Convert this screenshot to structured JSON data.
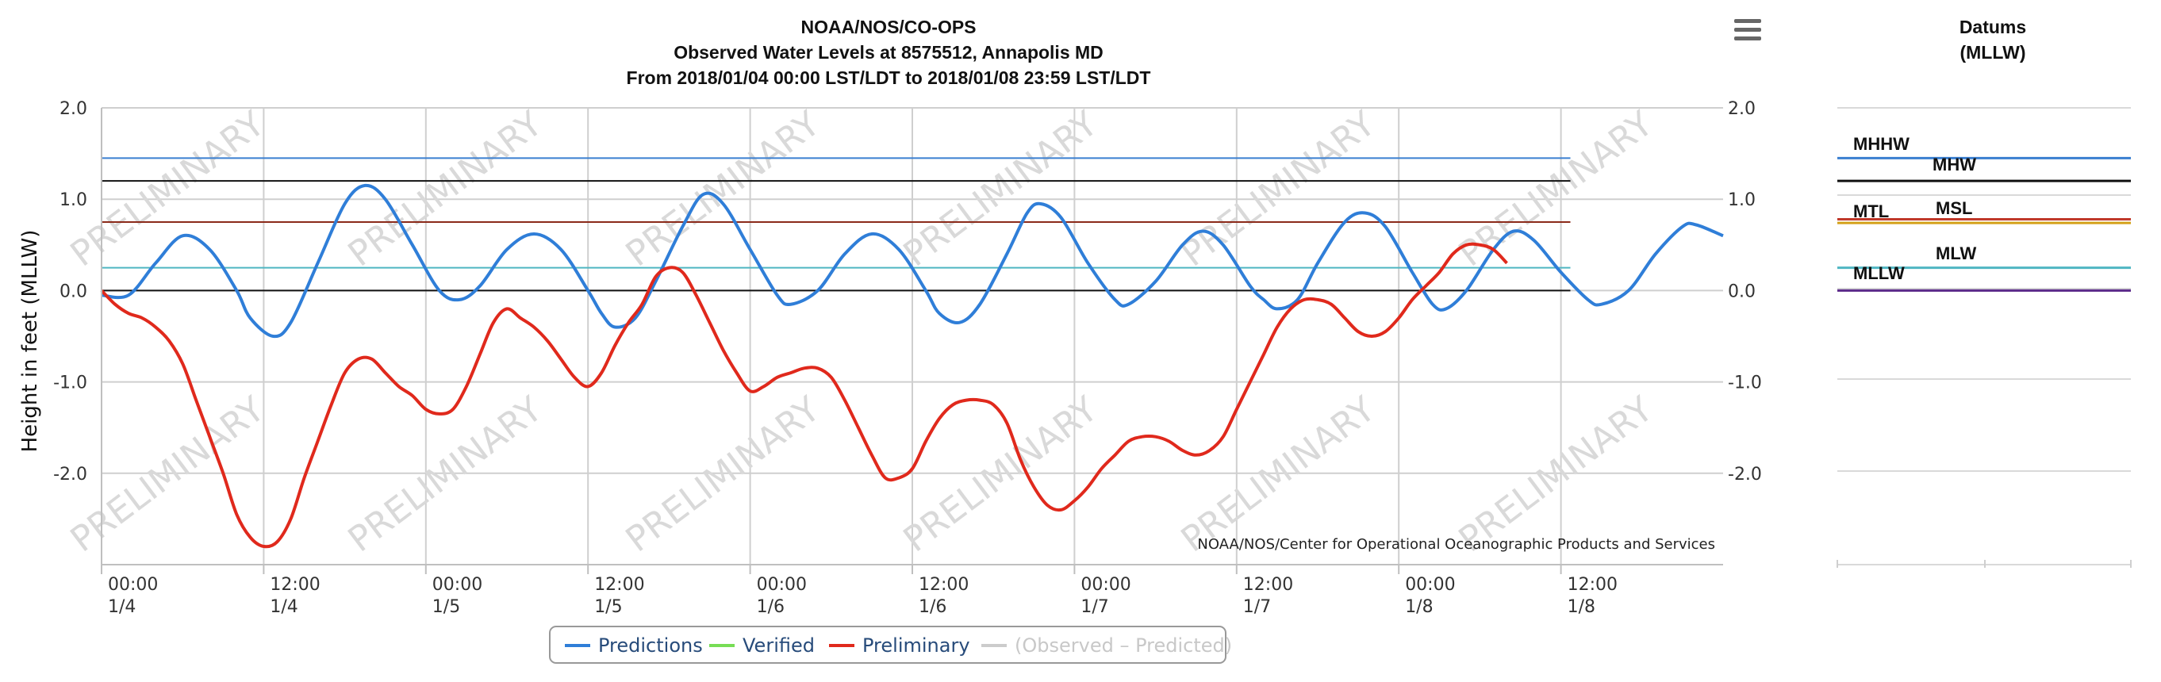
{
  "chart_data": {
    "type": "line",
    "title": "NOAA/NOS/CO-OPS",
    "subtitle_1": "Observed Water Levels at 8575512, Annapolis MD",
    "subtitle_2": "From 2018/01/04 00:00 LST/LDT to 2018/01/08 23:59 LST/LDT",
    "ylabel": "Height in feet (MLLW)",
    "credit": "NOAA/NOS/Center for Operational Oceanographic Products and Services",
    "watermark": "PRELIMINARY",
    "x_unit": "hours from 2018/01/04 00:00",
    "xlim": [
      0,
      120
    ],
    "ylim": [
      -3,
      2
    ],
    "y_ticks": [
      {
        "value": 2,
        "label": "2.0"
      },
      {
        "value": 1,
        "label": "1.0"
      },
      {
        "value": 0,
        "label": "0.0"
      },
      {
        "value": -1,
        "label": "-1.0"
      },
      {
        "value": -2,
        "label": "-2.0"
      }
    ],
    "x_ticks": [
      {
        "hour": 0,
        "time": "00:00",
        "date": "1/4"
      },
      {
        "hour": 12,
        "time": "12:00",
        "date": "1/4"
      },
      {
        "hour": 24,
        "time": "00:00",
        "date": "1/5"
      },
      {
        "hour": 36,
        "time": "12:00",
        "date": "1/5"
      },
      {
        "hour": 48,
        "time": "00:00",
        "date": "1/6"
      },
      {
        "hour": 60,
        "time": "12:00",
        "date": "1/6"
      },
      {
        "hour": 72,
        "time": "00:00",
        "date": "1/7"
      },
      {
        "hour": 84,
        "time": "12:00",
        "date": "1/7"
      },
      {
        "hour": 96,
        "time": "00:00",
        "date": "1/8"
      },
      {
        "hour": 108,
        "time": "12:00",
        "date": "1/8"
      }
    ],
    "datum_lines_main": [
      {
        "value": 1.45,
        "color": "#3a7fd0"
      },
      {
        "value": 1.2,
        "color": "#111111"
      },
      {
        "value": 0.75,
        "color": "#8b2a1a"
      },
      {
        "value": 0.25,
        "color": "#4fb6c2"
      },
      {
        "value": 0.0,
        "color": "#111111"
      }
    ],
    "series": [
      {
        "name": "Predictions",
        "color": "#2f7ed8",
        "points": [
          [
            0,
            -0.05
          ],
          [
            2,
            -0.05
          ],
          [
            4,
            0.3
          ],
          [
            6,
            0.6
          ],
          [
            8,
            0.45
          ],
          [
            10,
            0.0
          ],
          [
            11,
            -0.3
          ],
          [
            12.7,
            -0.5
          ],
          [
            14,
            -0.35
          ],
          [
            16,
            0.3
          ],
          [
            18,
            0.95
          ],
          [
            19.5,
            1.15
          ],
          [
            21,
            1.0
          ],
          [
            23,
            0.5
          ],
          [
            25,
            0.0
          ],
          [
            26.5,
            -0.1
          ],
          [
            28,
            0.05
          ],
          [
            30,
            0.45
          ],
          [
            32,
            0.62
          ],
          [
            34,
            0.45
          ],
          [
            36,
            0.0
          ],
          [
            37,
            -0.25
          ],
          [
            38,
            -0.4
          ],
          [
            39.5,
            -0.3
          ],
          [
            41,
            0.1
          ],
          [
            43,
            0.7
          ],
          [
            44.5,
            1.05
          ],
          [
            46,
            0.95
          ],
          [
            48,
            0.45
          ],
          [
            50,
            -0.05
          ],
          [
            51,
            -0.15
          ],
          [
            53,
            0.0
          ],
          [
            55,
            0.4
          ],
          [
            57,
            0.62
          ],
          [
            59,
            0.45
          ],
          [
            61,
            0.0
          ],
          [
            62,
            -0.25
          ],
          [
            63.5,
            -0.35
          ],
          [
            65,
            -0.15
          ],
          [
            67,
            0.4
          ],
          [
            68.5,
            0.85
          ],
          [
            69.5,
            0.95
          ],
          [
            71,
            0.8
          ],
          [
            73,
            0.3
          ],
          [
            75,
            -0.1
          ],
          [
            76,
            -0.15
          ],
          [
            78,
            0.1
          ],
          [
            80,
            0.5
          ],
          [
            81.5,
            0.65
          ],
          [
            83,
            0.5
          ],
          [
            85,
            0.05
          ],
          [
            86,
            -0.1
          ],
          [
            87,
            -0.2
          ],
          [
            88.5,
            -0.1
          ],
          [
            90,
            0.3
          ],
          [
            92,
            0.75
          ],
          [
            93.5,
            0.85
          ],
          [
            95,
            0.7
          ],
          [
            97,
            0.2
          ],
          [
            98.5,
            -0.15
          ],
          [
            99.5,
            -0.2
          ],
          [
            101,
            0.0
          ],
          [
            103,
            0.45
          ],
          [
            104.5,
            0.65
          ],
          [
            106,
            0.55
          ],
          [
            108,
            0.2
          ],
          [
            110,
            -0.1
          ],
          [
            111,
            -0.15
          ],
          [
            113,
            0.0
          ],
          [
            115,
            0.4
          ],
          [
            117,
            0.7
          ],
          [
            118,
            0.72
          ],
          [
            120,
            0.6
          ]
        ]
      },
      {
        "name": "Verified",
        "color": "#77dd55",
        "points": []
      },
      {
        "name": "Preliminary",
        "color": "#e0291c",
        "points": [
          [
            0,
            0.0
          ],
          [
            1,
            -0.15
          ],
          [
            2,
            -0.25
          ],
          [
            3,
            -0.3
          ],
          [
            4,
            -0.4
          ],
          [
            5,
            -0.55
          ],
          [
            6,
            -0.8
          ],
          [
            7,
            -1.2
          ],
          [
            8,
            -1.6
          ],
          [
            9,
            -2.0
          ],
          [
            10,
            -2.45
          ],
          [
            11,
            -2.7
          ],
          [
            12,
            -2.8
          ],
          [
            13,
            -2.75
          ],
          [
            14,
            -2.5
          ],
          [
            15,
            -2.05
          ],
          [
            16,
            -1.65
          ],
          [
            17,
            -1.25
          ],
          [
            18,
            -0.9
          ],
          [
            19,
            -0.75
          ],
          [
            20,
            -0.75
          ],
          [
            21,
            -0.9
          ],
          [
            22,
            -1.05
          ],
          [
            23,
            -1.15
          ],
          [
            24,
            -1.3
          ],
          [
            25,
            -1.35
          ],
          [
            26,
            -1.3
          ],
          [
            27,
            -1.05
          ],
          [
            28,
            -0.7
          ],
          [
            29,
            -0.35
          ],
          [
            30,
            -0.2
          ],
          [
            31,
            -0.3
          ],
          [
            32,
            -0.4
          ],
          [
            33,
            -0.55
          ],
          [
            34,
            -0.75
          ],
          [
            35,
            -0.95
          ],
          [
            36,
            -1.05
          ],
          [
            37,
            -0.9
          ],
          [
            38,
            -0.6
          ],
          [
            39,
            -0.35
          ],
          [
            40,
            -0.15
          ],
          [
            41,
            0.15
          ],
          [
            42,
            0.25
          ],
          [
            43,
            0.2
          ],
          [
            44,
            -0.05
          ],
          [
            45,
            -0.35
          ],
          [
            46,
            -0.65
          ],
          [
            47,
            -0.9
          ],
          [
            48,
            -1.1
          ],
          [
            49,
            -1.05
          ],
          [
            50,
            -0.95
          ],
          [
            51,
            -0.9
          ],
          [
            52,
            -0.85
          ],
          [
            53,
            -0.85
          ],
          [
            54,
            -0.95
          ],
          [
            55,
            -1.2
          ],
          [
            56,
            -1.5
          ],
          [
            57,
            -1.8
          ],
          [
            58,
            -2.05
          ],
          [
            59,
            -2.05
          ],
          [
            60,
            -1.95
          ],
          [
            61,
            -1.65
          ],
          [
            62,
            -1.4
          ],
          [
            63,
            -1.25
          ],
          [
            64,
            -1.2
          ],
          [
            65,
            -1.2
          ],
          [
            66,
            -1.25
          ],
          [
            67,
            -1.45
          ],
          [
            68,
            -1.85
          ],
          [
            69,
            -2.15
          ],
          [
            70,
            -2.35
          ],
          [
            71,
            -2.4
          ],
          [
            72,
            -2.3
          ],
          [
            73,
            -2.15
          ],
          [
            74,
            -1.95
          ],
          [
            75,
            -1.8
          ],
          [
            76,
            -1.65
          ],
          [
            77,
            -1.6
          ],
          [
            78,
            -1.6
          ],
          [
            79,
            -1.65
          ],
          [
            80,
            -1.75
          ],
          [
            81,
            -1.8
          ],
          [
            82,
            -1.75
          ],
          [
            83,
            -1.6
          ],
          [
            84,
            -1.3
          ],
          [
            85,
            -1.0
          ],
          [
            86,
            -0.7
          ],
          [
            87,
            -0.4
          ],
          [
            88,
            -0.2
          ],
          [
            89,
            -0.1
          ],
          [
            90,
            -0.1
          ],
          [
            91,
            -0.15
          ],
          [
            92,
            -0.3
          ],
          [
            93,
            -0.45
          ],
          [
            94,
            -0.5
          ],
          [
            95,
            -0.45
          ],
          [
            96,
            -0.3
          ],
          [
            97,
            -0.1
          ],
          [
            98,
            0.05
          ],
          [
            99,
            0.2
          ],
          [
            100,
            0.4
          ],
          [
            101,
            0.5
          ],
          [
            102,
            0.5
          ],
          [
            103,
            0.45
          ],
          [
            104,
            0.3
          ]
        ]
      },
      {
        "name": "(Observed – Predicted)",
        "color": "#cccccc",
        "points": []
      }
    ],
    "legend_position": "bottom-center"
  },
  "datums_panel": {
    "title_1": "Datums",
    "title_2": "(MLLW)",
    "datums": [
      {
        "name": "MHHW",
        "color": "#3a7fd0",
        "level": 1.45
      },
      {
        "name": "MHW",
        "color": "#111111",
        "level": 1.2
      },
      {
        "name": "MTL",
        "color": "#c0392b",
        "level": 0.78
      },
      {
        "name": "MSL",
        "color": "#d4a017",
        "level": 0.74
      },
      {
        "name": "MLW",
        "color": "#4fb6c2",
        "level": 0.25
      },
      {
        "name": "MLLW",
        "color": "#5b2a8a",
        "level": 0.0
      }
    ]
  },
  "menu": {
    "icon": "hamburger-menu-icon"
  }
}
